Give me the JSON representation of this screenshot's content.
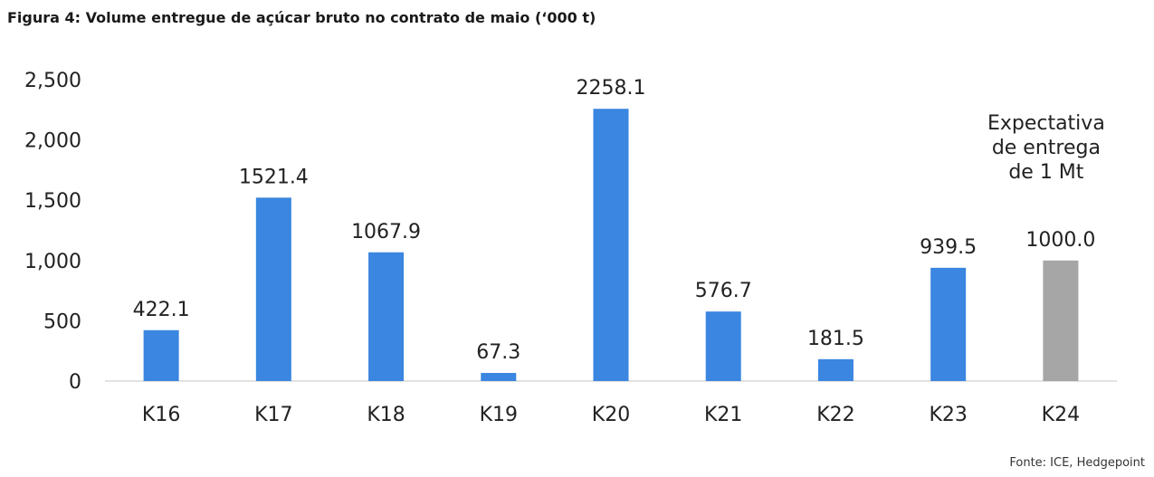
{
  "title": "Figura 4: Volume entregue de açúcar bruto no contrato de maio (‘000 t)",
  "source": "Fonte: ICE, Hedgepoint",
  "colors": {
    "bar": "#3a86e0",
    "highlight": "#a6a6a6",
    "axis": "#d9d9d9"
  },
  "chart_data": {
    "type": "bar",
    "title": "Figura 4: Volume entregue de açúcar bruto no contrato de maio (‘000 t)",
    "categories": [
      "K16",
      "K17",
      "K18",
      "K19",
      "K20",
      "K21",
      "K22",
      "K23",
      "K24"
    ],
    "values": [
      422.1,
      1521.4,
      1067.9,
      67.3,
      2258.1,
      576.7,
      181.5,
      939.5,
      1000.0
    ],
    "data_labels": [
      "422.1",
      "1521.4",
      "1067.9",
      "67.3",
      "2258.1",
      "576.7",
      "181.5",
      "939.5",
      "1000.0"
    ],
    "highlight_category": "K24",
    "yticks": [
      0,
      500,
      1000,
      1500,
      2000,
      2500
    ],
    "ytick_labels": [
      "0",
      "500",
      "1,000",
      "1,500",
      "2,000",
      "2,500"
    ],
    "ylim": [
      0,
      2500
    ],
    "xlabel": "",
    "ylabel": "",
    "grid": false,
    "annotation": {
      "category": "K24",
      "lines": [
        "Expectativa",
        "de entrega",
        "de 1 Mt"
      ]
    }
  }
}
